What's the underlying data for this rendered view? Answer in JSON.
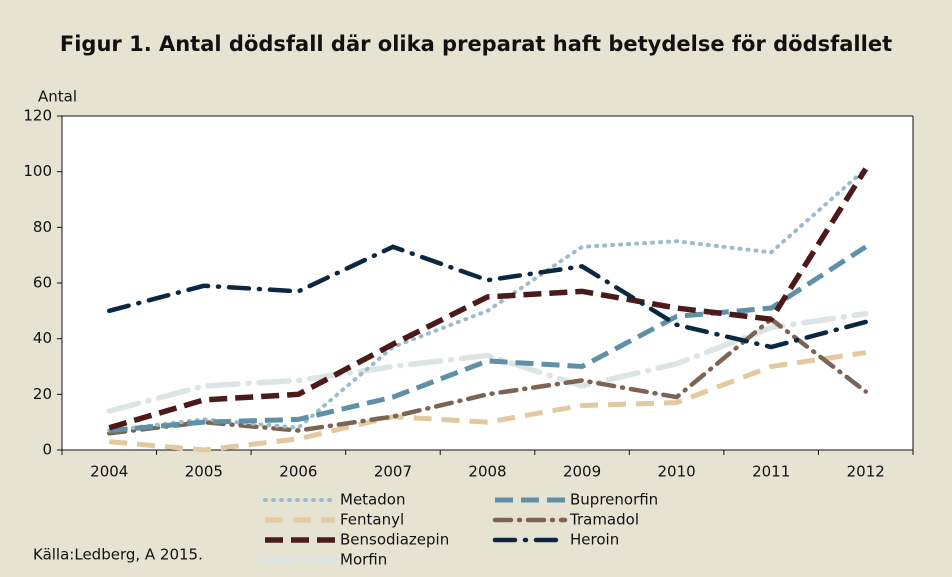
{
  "chart_data": {
    "type": "line",
    "title": "Figur 1. Antal dödsfall där olika preparat haft betydelse för dödsfallet",
    "y_label": "Antal",
    "source": "Källa:Ledberg, A 2015.",
    "categories": [
      "2004",
      "2005",
      "2006",
      "2007",
      "2008",
      "2009",
      "2010",
      "2011",
      "2012"
    ],
    "series": [
      {
        "name": "Metadon",
        "color": "#9dbccb",
        "values": [
          7,
          11,
          8,
          37,
          50,
          73,
          75,
          71,
          101
        ]
      },
      {
        "name": "Buprenorfin",
        "color": "#5e90a8",
        "values": [
          7,
          10,
          11,
          19,
          32,
          30,
          48,
          51,
          73
        ]
      },
      {
        "name": "Fentanyl",
        "color": "#e2c9a0",
        "values": [
          3,
          0,
          4,
          12,
          10,
          16,
          17,
          30,
          35
        ]
      },
      {
        "name": "Tramadol",
        "color": "#7b6453",
        "values": [
          6,
          10,
          7,
          12,
          20,
          25,
          19,
          47,
          21
        ]
      },
      {
        "name": "Bensodiazepin",
        "color": "#4c1a1a",
        "values": [
          8,
          18,
          20,
          38,
          55,
          57,
          51,
          47,
          101
        ]
      },
      {
        "name": "Heroin",
        "color": "#0c2742",
        "values": [
          50,
          59,
          57,
          73,
          61,
          66,
          45,
          37,
          46
        ]
      },
      {
        "name": "Morfin",
        "color": "#dde4e5",
        "values": [
          14,
          23,
          25,
          30,
          34,
          23,
          31,
          44,
          49
        ]
      }
    ],
    "ylim": [
      0,
      120
    ],
    "yticks": [
      0,
      20,
      40,
      60,
      80,
      100,
      120
    ]
  }
}
